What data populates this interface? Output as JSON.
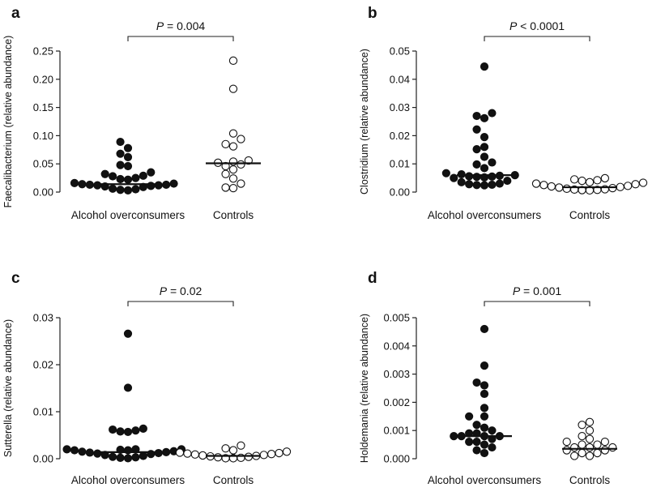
{
  "chart_data": [
    {
      "type": "scatter",
      "panel_label": "a",
      "ylabel": "Faecalibacterium (relative abundance)",
      "categories": [
        "Alcohol overconsumers",
        "Controls"
      ],
      "ylim": [
        0,
        0.25
      ],
      "yticks": [
        0.0,
        0.05,
        0.1,
        0.15,
        0.2,
        0.25
      ],
      "ytick_labels": [
        "0.00",
        "0.05",
        "0.10",
        "0.15",
        "0.20",
        "0.25"
      ],
      "p_prefix": "P",
      "p_text": " = 0.004",
      "series": [
        {
          "name": "Alcohol overconsumers",
          "median": 0.014,
          "values": [
            0.089,
            0.078,
            0.068,
            0.062,
            0.048,
            0.046,
            0.035,
            0.032,
            0.029,
            0.028,
            0.025,
            0.023,
            0.022,
            0.016,
            0.015,
            0.014,
            0.013,
            0.013,
            0.012,
            0.012,
            0.011,
            0.01,
            0.009,
            0.006,
            0.005,
            0.004,
            0.003
          ]
        },
        {
          "name": "Controls",
          "median": 0.051,
          "values": [
            0.233,
            0.183,
            0.104,
            0.094,
            0.085,
            0.081,
            0.056,
            0.054,
            0.052,
            0.049,
            0.046,
            0.04,
            0.032,
            0.024,
            0.015,
            0.008,
            0.007
          ]
        }
      ]
    },
    {
      "type": "scatter",
      "panel_label": "b",
      "ylabel": "Clostridium (relative abundance)",
      "categories": [
        "Alcohol overconsumers",
        "Controls"
      ],
      "ylim": [
        0,
        0.05
      ],
      "yticks": [
        0.0,
        0.01,
        0.02,
        0.03,
        0.04,
        0.05
      ],
      "ytick_labels": [
        "0.00",
        "0.01",
        "0.02",
        "0.03",
        "0.04",
        "0.05"
      ],
      "p_prefix": "P",
      "p_text": " < 0.0001",
      "series": [
        {
          "name": "Alcohol overconsumers",
          "median": 0.006,
          "values": [
            0.0445,
            0.028,
            0.027,
            0.0262,
            0.0222,
            0.0195,
            0.016,
            0.0152,
            0.0125,
            0.0105,
            0.0098,
            0.0085,
            0.0067,
            0.0063,
            0.006,
            0.0058,
            0.0056,
            0.0055,
            0.0054,
            0.0052,
            0.005,
            0.004,
            0.0035,
            0.003,
            0.0028,
            0.0026,
            0.0025,
            0.0024
          ]
        },
        {
          "name": "Controls",
          "median": 0.0017,
          "values": [
            0.0049,
            0.0045,
            0.0042,
            0.004,
            0.0035,
            0.0033,
            0.003,
            0.0028,
            0.0025,
            0.0022,
            0.002,
            0.0018,
            0.0016,
            0.0014,
            0.0012,
            0.001,
            0.0009,
            0.0008,
            0.0007,
            0.0006
          ]
        }
      ]
    },
    {
      "type": "scatter",
      "panel_label": "c",
      "ylabel": "Sutterella (relative abundance)",
      "categories": [
        "Alcohol overconsumers",
        "Controls"
      ],
      "ylim": [
        0,
        0.03
      ],
      "yticks": [
        0.0,
        0.01,
        0.02,
        0.03
      ],
      "ytick_labels": [
        "0.00",
        "0.01",
        "0.02",
        "0.03"
      ],
      "p_prefix": "P",
      "p_text": " = 0.02",
      "series": [
        {
          "name": "Alcohol overconsumers",
          "median": 0.0014,
          "values": [
            0.0266,
            0.0151,
            0.0064,
            0.0062,
            0.006,
            0.0058,
            0.0057,
            0.002,
            0.002,
            0.002,
            0.0019,
            0.0018,
            0.0018,
            0.0016,
            0.0015,
            0.0014,
            0.0013,
            0.0012,
            0.0011,
            0.001,
            0.0008,
            0.0006,
            0.0004,
            0.0003,
            0.0002,
            0.0001
          ]
        },
        {
          "name": "Controls",
          "median": 0.0006,
          "values": [
            0.0028,
            0.0022,
            0.0018,
            0.0015,
            0.0013,
            0.0012,
            0.0011,
            0.001,
            0.0009,
            0.0008,
            0.0007,
            0.0006,
            0.0005,
            0.0004,
            0.0003,
            0.0002,
            0.0001,
            0.0001
          ]
        }
      ]
    },
    {
      "type": "scatter",
      "panel_label": "d",
      "ylabel": "Holdemania (relative abundance)",
      "categories": [
        "Alcohol overconsumers",
        "Controls"
      ],
      "ylim": [
        0,
        0.005
      ],
      "yticks": [
        0.0,
        0.001,
        0.002,
        0.003,
        0.004,
        0.005
      ],
      "ytick_labels": [
        "0.000",
        "0.001",
        "0.002",
        "0.003",
        "0.004",
        "0.005"
      ],
      "p_prefix": "P",
      "p_text": " = 0.001",
      "series": [
        {
          "name": "Alcohol overconsumers",
          "median": 0.0008,
          "values": [
            0.0046,
            0.0033,
            0.0027,
            0.0026,
            0.0023,
            0.0018,
            0.0015,
            0.0015,
            0.0012,
            0.0011,
            0.001,
            0.0009,
            0.0009,
            0.0008,
            0.0008,
            0.0008,
            0.0008,
            0.0007,
            0.0006,
            0.0006,
            0.0005,
            0.0004,
            0.0003,
            0.0002
          ]
        },
        {
          "name": "Controls",
          "median": 0.00035,
          "values": [
            0.0013,
            0.0012,
            0.001,
            0.0008,
            0.0007,
            0.0006,
            0.0006,
            0.0005,
            0.0005,
            0.0004,
            0.0004,
            0.0004,
            0.0003,
            0.0003,
            0.0002,
            0.0002,
            0.0001,
            0.0001
          ]
        }
      ]
    }
  ]
}
